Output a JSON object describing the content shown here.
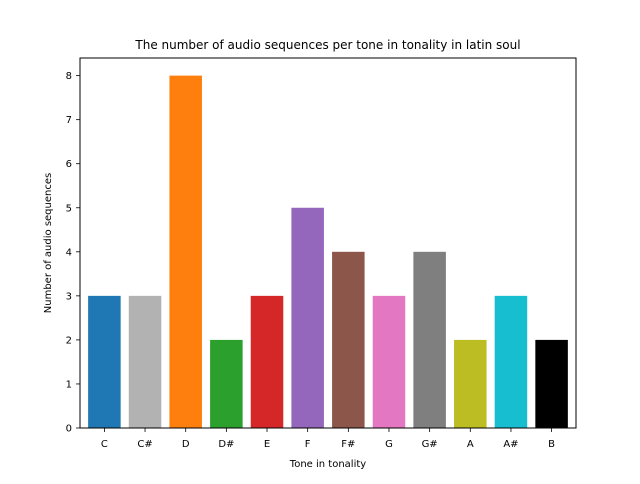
{
  "chart_data": {
    "type": "bar",
    "title": "The number of audio sequences per tone in tonality in latin soul",
    "xlabel": "Tone in tonality",
    "ylabel": "Number of audio sequences",
    "categories": [
      "C",
      "C#",
      "D",
      "D#",
      "E",
      "F",
      "F#",
      "G",
      "G#",
      "A",
      "A#",
      "B"
    ],
    "values": [
      3,
      3,
      8,
      2,
      3,
      5,
      4,
      3,
      4,
      2,
      3,
      2
    ],
    "colors": [
      "#1f77b4",
      "#b2b2b2",
      "#ff7f0e",
      "#2ca02c",
      "#d62728",
      "#9467bd",
      "#8c564b",
      "#e377c2",
      "#7f7f7f",
      "#bcbd22",
      "#17becf",
      "#000000"
    ],
    "ylim": [
      0,
      8.4
    ],
    "yticks": [
      0,
      1,
      2,
      3,
      4,
      5,
      6,
      7,
      8
    ],
    "grid": false,
    "legend": "none"
  }
}
